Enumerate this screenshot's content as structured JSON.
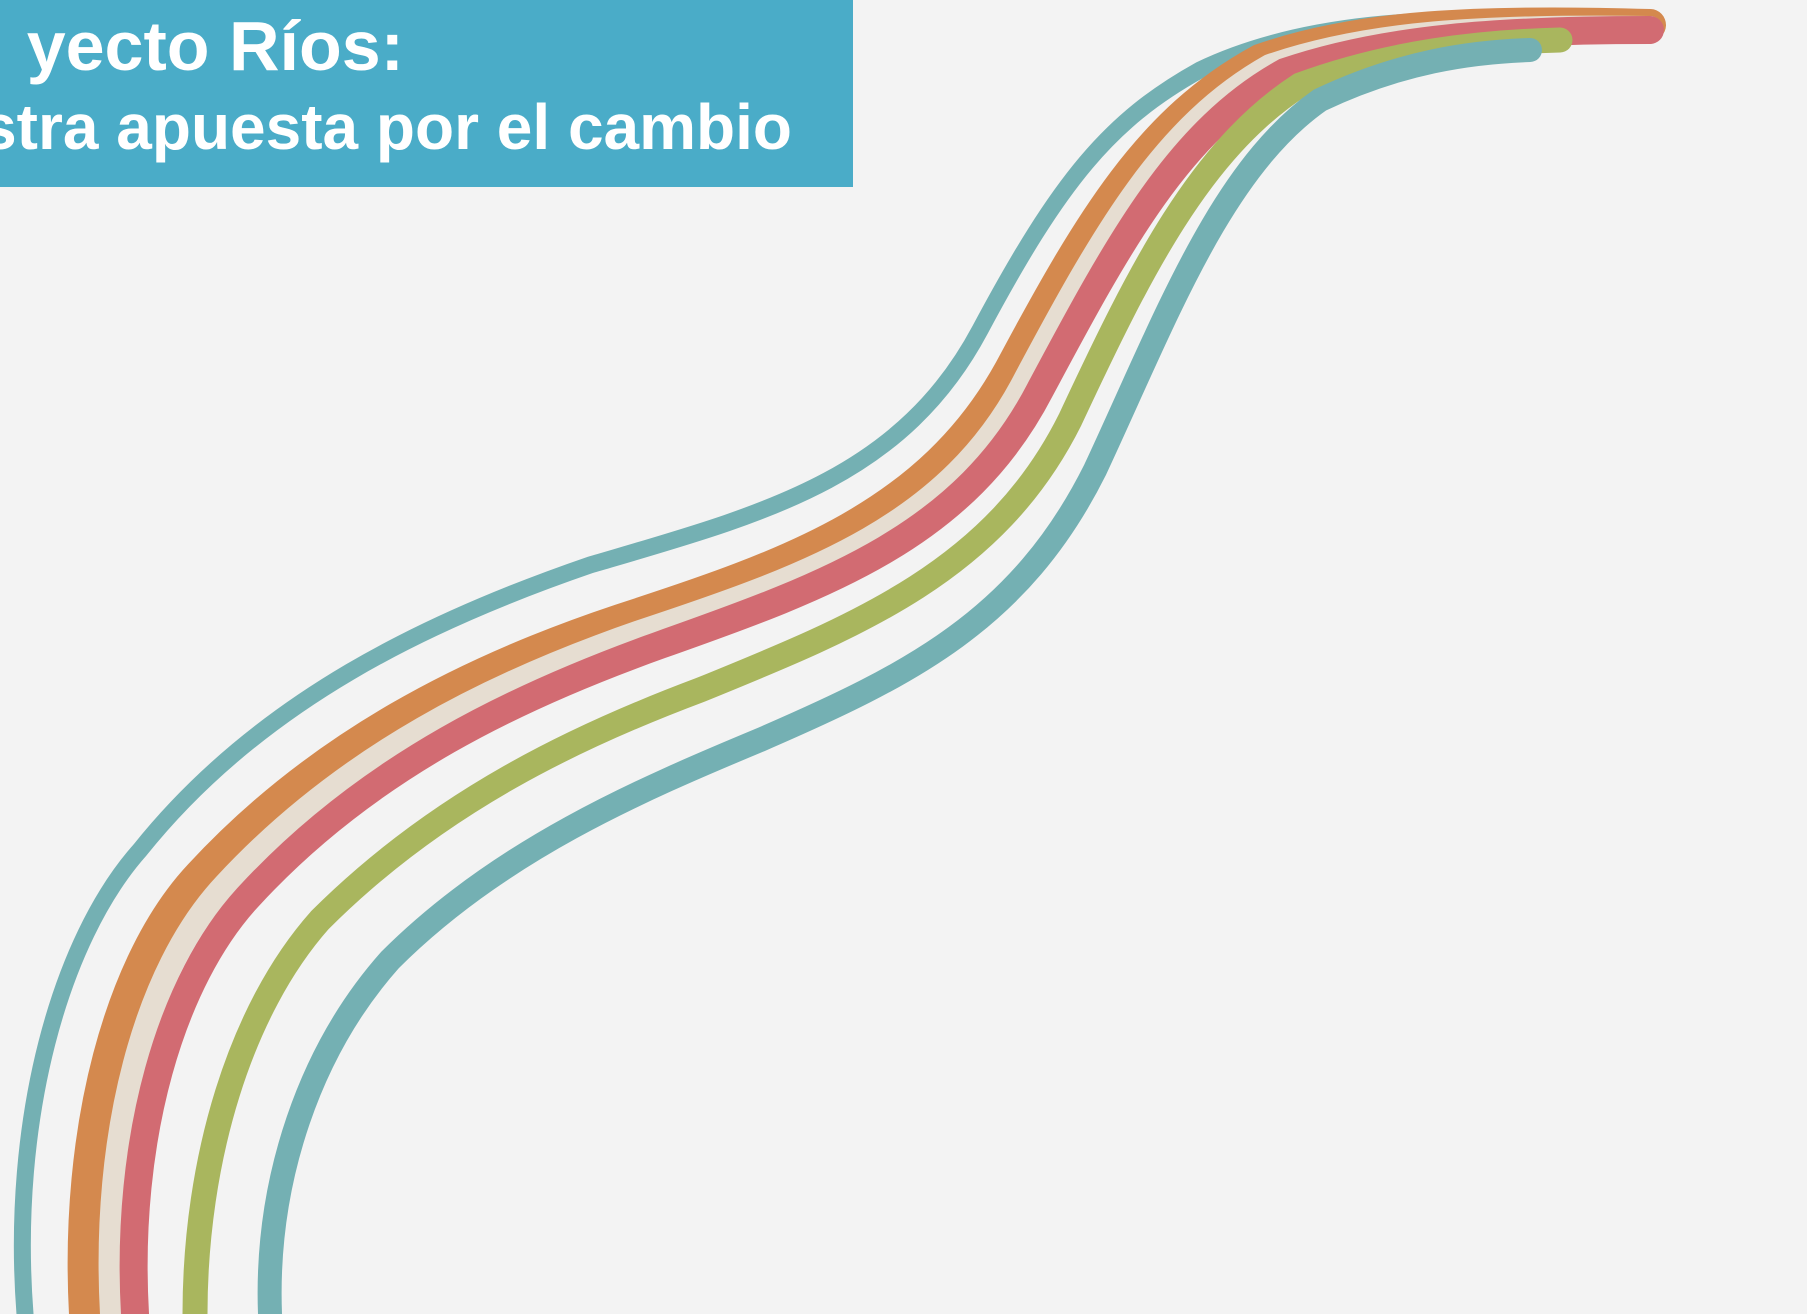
{
  "banner": {
    "line1": "yecto Ríos:",
    "line2": "stra apuesta por el cambio",
    "background_color": "#4aacc8",
    "text_color": "#ffffff"
  },
  "background_color": "#f3f3f3",
  "river_stripes": [
    {
      "name": "outer-teal-stripe",
      "color": "#74b0b3"
    },
    {
      "name": "orange-stripe",
      "color": "#d4894e"
    },
    {
      "name": "cream-stripe",
      "color": "#e6ddd1"
    },
    {
      "name": "red-stripe",
      "color": "#d26b72"
    },
    {
      "name": "green-stripe",
      "color": "#a9b65e"
    },
    {
      "name": "inner-teal-stripe",
      "color": "#74b0b3"
    }
  ]
}
